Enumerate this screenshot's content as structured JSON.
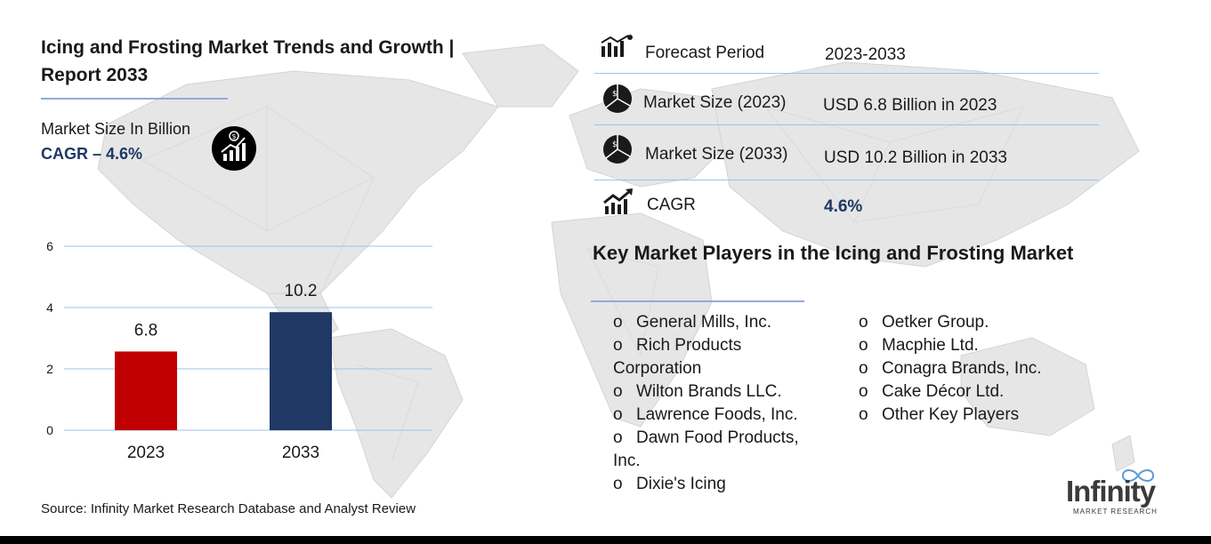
{
  "title": "Icing and Frosting Market Trends and Growth | Report 2033",
  "market_size_label": "Market Size In Billion",
  "cagr_label": "CAGR –",
  "cagr_value": "4.6%",
  "chart_data": {
    "type": "bar",
    "categories": [
      "2023",
      "2033"
    ],
    "values": [
      6.8,
      10.2
    ],
    "data_labels": [
      "6.8",
      "10.2"
    ],
    "y_ticks": [
      "0",
      "2",
      "4",
      "6"
    ],
    "ylim": [
      0,
      6
    ],
    "grid": true,
    "bar_colors": [
      "#c00000",
      "#1f3864"
    ],
    "title": "",
    "xlabel": "",
    "ylabel": ""
  },
  "source": "Source: Infinity Market Research Database and Analyst Review",
  "info_table": [
    {
      "icon": "bar-chart-icon",
      "label": "Forecast Period",
      "value": "2023-2033"
    },
    {
      "icon": "pie-chart-icon",
      "label": "Market Size (2023)",
      "value": "USD 6.8 Billion in 2023"
    },
    {
      "icon": "pie-chart-icon",
      "label": "Market Size (2033)",
      "value": "USD 10.2  Billion in 2033"
    },
    {
      "icon": "growth-chart-icon",
      "label": "CAGR",
      "value": "4.6%"
    }
  ],
  "players_title": "Key Market Players in the Icing and Frosting Market",
  "bullet": "o",
  "players_col1": [
    "General Mills, Inc.",
    "Rich Products Corporation",
    "Wilton Brands LLC.",
    "Lawrence Foods, Inc.",
    "Dawn Food Products, Inc.",
    "Dixie's Icing"
  ],
  "players_col2": [
    "Oetker Group.",
    "Macphie Ltd.",
    "Conagra Brands, Inc.",
    "Cake Décor Ltd.",
    "Other Key Players"
  ],
  "logo": {
    "word": "Infinity",
    "sub": "MARKET RESEARCH"
  },
  "colors": {
    "accent": "#1f3864",
    "red": "#c00000",
    "rule": "#9dc3e6"
  }
}
